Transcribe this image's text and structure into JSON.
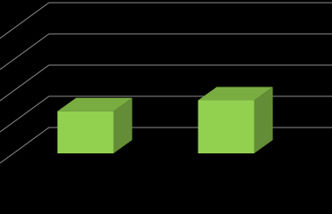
{
  "chart_data": {
    "type": "bar3d",
    "categories": [
      null,
      null
    ],
    "values": [
      1.35,
      1.7
    ],
    "color": "#92d050",
    "ylim": [
      0,
      4
    ],
    "yticks": [
      0,
      1,
      2,
      3,
      4
    ],
    "grid": true
  }
}
